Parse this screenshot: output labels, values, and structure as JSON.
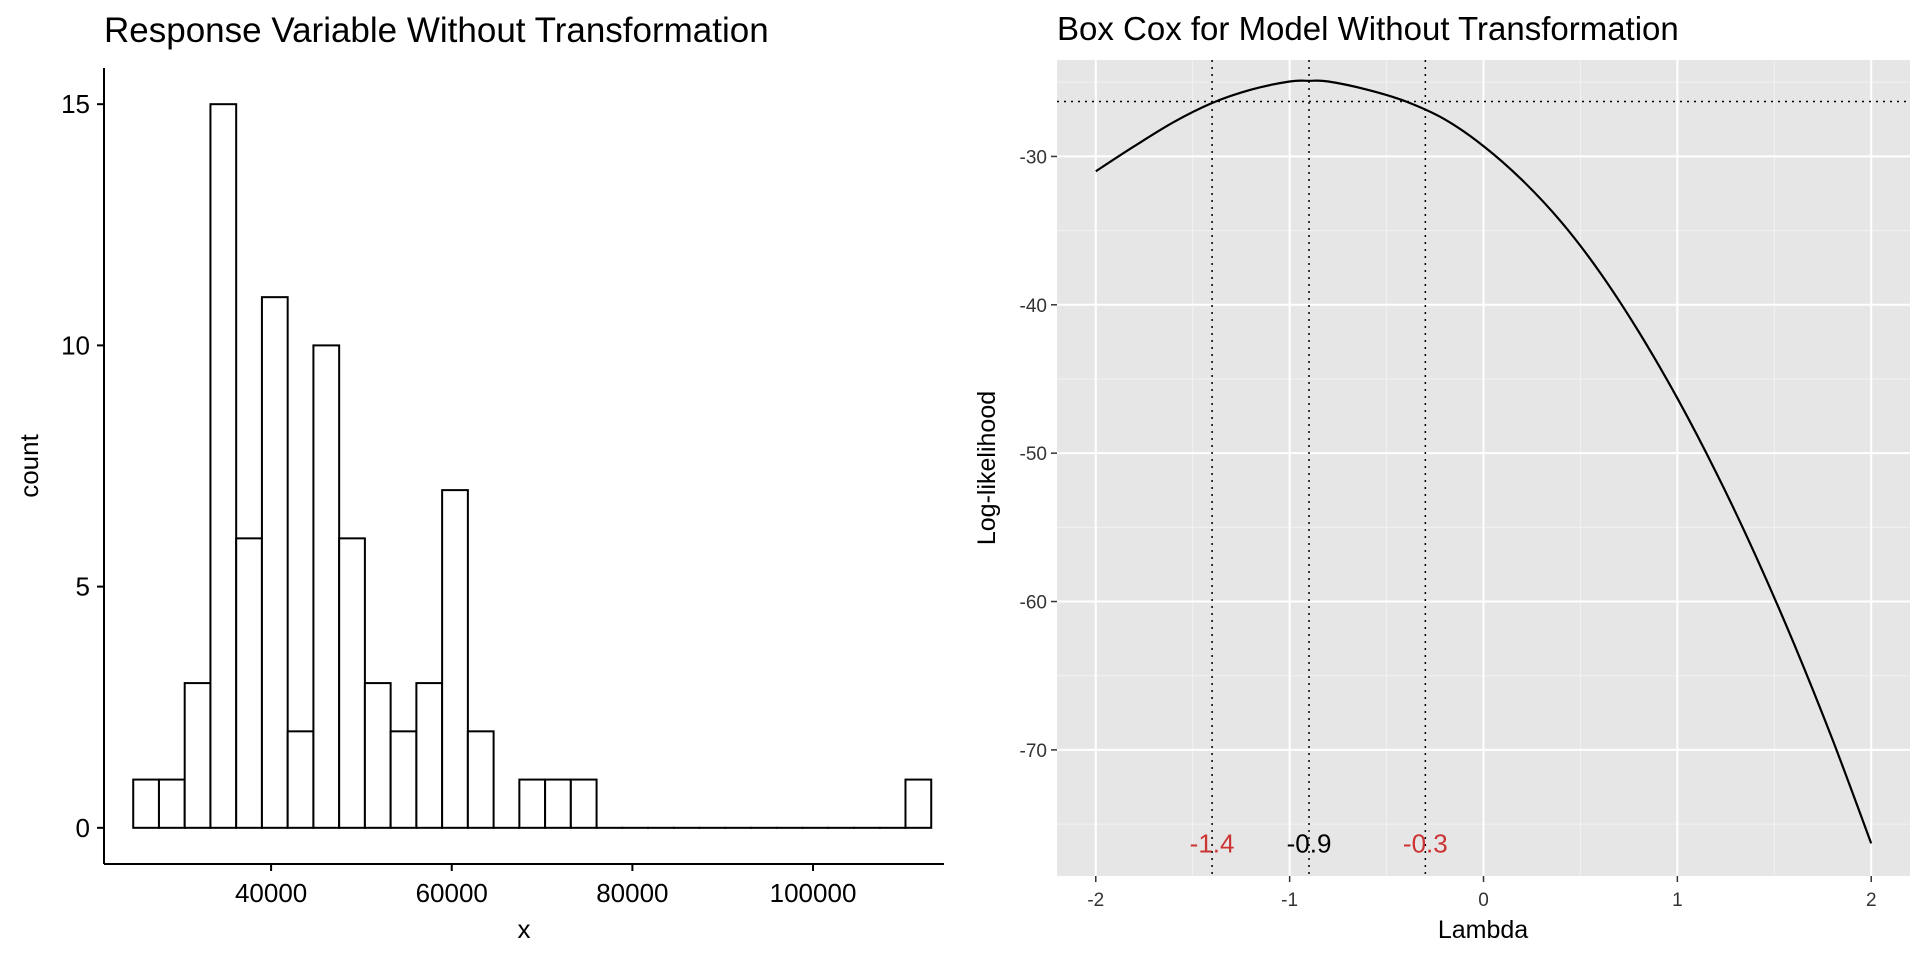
{
  "chart_data": [
    {
      "type": "bar",
      "title": "Response Variable Without Transformation",
      "xlabel": "x",
      "ylabel": "count",
      "xlim": [
        21500,
        114500
      ],
      "ylim": [
        -0.75,
        15.75
      ],
      "x_ticks": [
        40000,
        60000,
        80000,
        100000
      ],
      "x_tick_labels": [
        "40000",
        "60000",
        "80000",
        "100000"
      ],
      "y_ticks": [
        0,
        5,
        10,
        15
      ],
      "y_tick_labels": [
        "0",
        "5",
        "10",
        "15"
      ],
      "bin_width": 2850,
      "bins": [
        {
          "x": 26160,
          "count": 1
        },
        {
          "x": 29010,
          "count": 1
        },
        {
          "x": 31860,
          "count": 3
        },
        {
          "x": 34710,
          "count": 15
        },
        {
          "x": 37560,
          "count": 6
        },
        {
          "x": 40410,
          "count": 11
        },
        {
          "x": 43260,
          "count": 2
        },
        {
          "x": 46110,
          "count": 10
        },
        {
          "x": 48960,
          "count": 6
        },
        {
          "x": 51810,
          "count": 3
        },
        {
          "x": 54660,
          "count": 2
        },
        {
          "x": 57510,
          "count": 3
        },
        {
          "x": 60360,
          "count": 7
        },
        {
          "x": 63210,
          "count": 2
        },
        {
          "x": 66060,
          "count": 0
        },
        {
          "x": 68910,
          "count": 1
        },
        {
          "x": 71760,
          "count": 1
        },
        {
          "x": 74610,
          "count": 1
        },
        {
          "x": 77460,
          "count": 0
        },
        {
          "x": 80310,
          "count": 0
        },
        {
          "x": 83160,
          "count": 0
        },
        {
          "x": 86010,
          "count": 0
        },
        {
          "x": 88860,
          "count": 0
        },
        {
          "x": 91710,
          "count": 0
        },
        {
          "x": 94560,
          "count": 0
        },
        {
          "x": 97410,
          "count": 0
        },
        {
          "x": 100260,
          "count": 0
        },
        {
          "x": 103110,
          "count": 0
        },
        {
          "x": 105960,
          "count": 0
        },
        {
          "x": 108810,
          "count": 0
        },
        {
          "x": 111660,
          "count": 1
        }
      ],
      "grid": false,
      "theme": "classic"
    },
    {
      "type": "line",
      "title": "Box Cox for Model Without Transformation",
      "xlabel": "Lambda",
      "ylabel": "Log-likelihood",
      "xlim": [
        -2.2,
        2.2
      ],
      "ylim": [
        -78.5,
        -23.5
      ],
      "x_ticks": [
        -2,
        -1,
        0,
        1,
        2
      ],
      "x_tick_labels": [
        "-2",
        "-1",
        "0",
        "1",
        "2"
      ],
      "y_ticks": [
        -30,
        -40,
        -50,
        -60,
        -70
      ],
      "y_tick_labels": [
        "-30",
        "-40",
        "-50",
        "-60",
        "-70"
      ],
      "curve": {
        "x": [
          -2.0,
          -1.8,
          -1.6,
          -1.4,
          -1.2,
          -1.0,
          -0.9,
          -0.8,
          -0.6,
          -0.4,
          -0.2,
          0.0,
          0.2,
          0.4,
          0.6,
          0.8,
          1.0,
          1.2,
          1.4,
          1.6,
          1.8,
          2.0
        ],
        "y": [
          -31.0,
          -29.3,
          -27.7,
          -26.4,
          -25.5,
          -24.95,
          -24.9,
          -24.95,
          -25.5,
          -26.3,
          -27.5,
          -29.3,
          -31.6,
          -34.4,
          -37.8,
          -41.8,
          -46.3,
          -51.3,
          -56.8,
          -62.8,
          -69.3,
          -76.3
        ]
      },
      "hline_y": -26.3,
      "vlines": [
        -1.4,
        -0.9,
        -0.3
      ],
      "vline_labels": [
        {
          "x": -1.4,
          "y": -76.3,
          "text": "-1.4",
          "color": "#cc3333"
        },
        {
          "x": -0.9,
          "y": -76.3,
          "text": "-0.9",
          "color": "#000000"
        },
        {
          "x": -0.3,
          "y": -76.3,
          "text": "-0.3",
          "color": "#cc3333"
        }
      ],
      "grid": true,
      "theme": "gray",
      "panel_color": "#e6e6e6"
    }
  ]
}
